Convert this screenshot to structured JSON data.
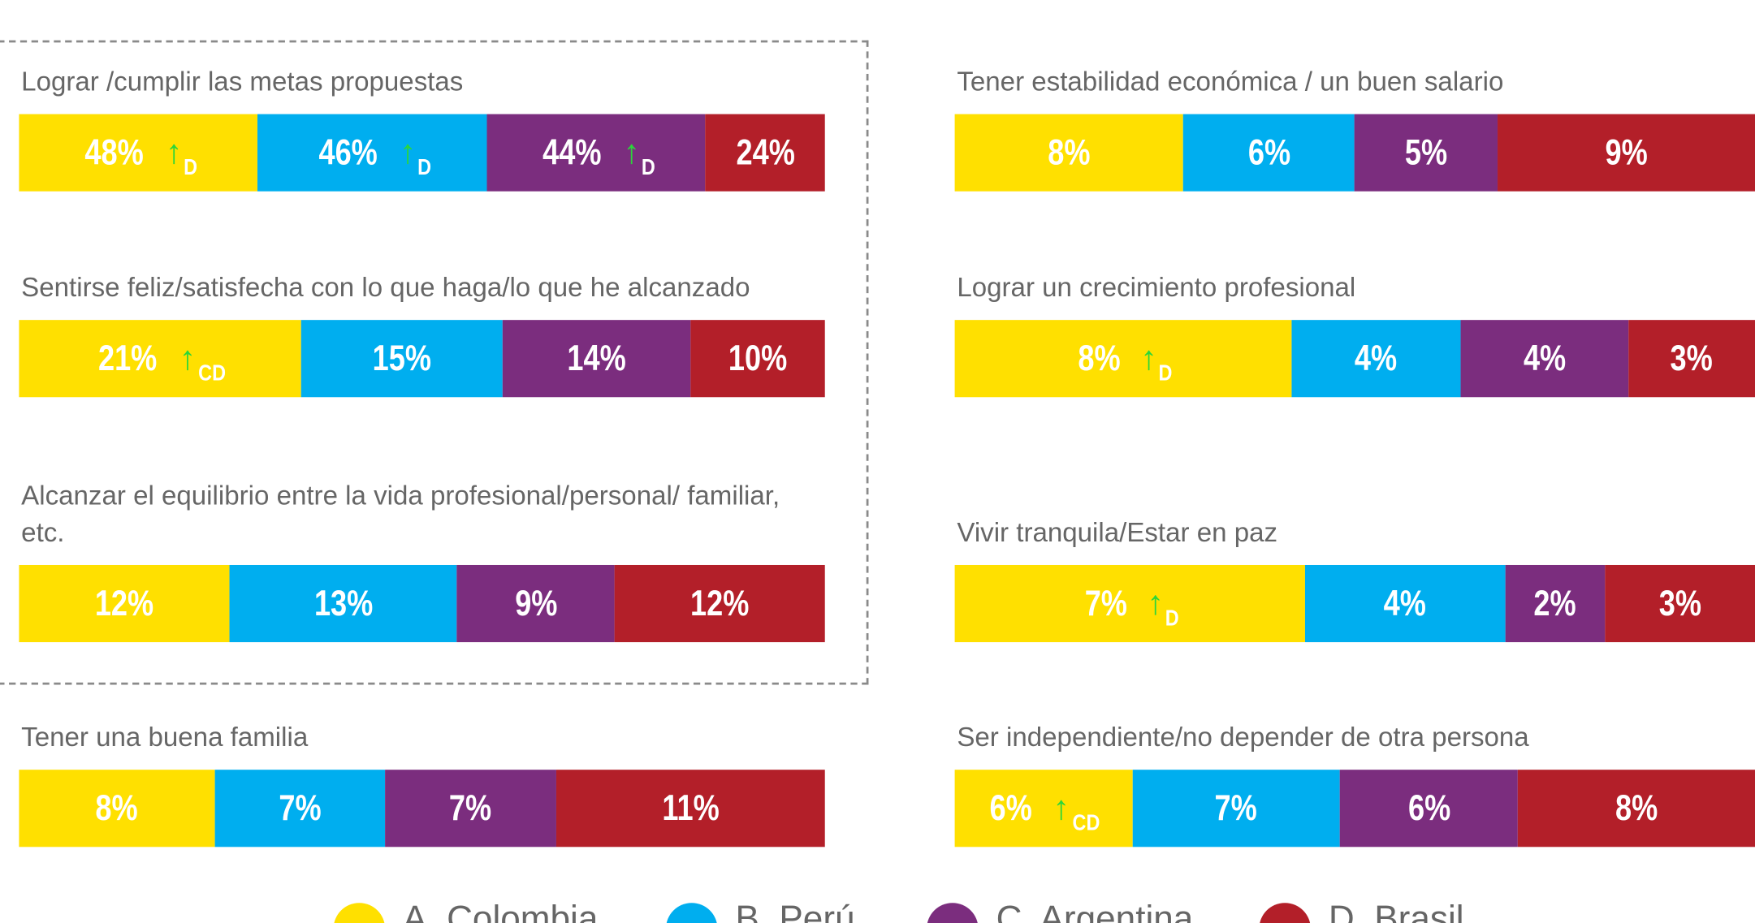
{
  "chart_data": {
    "type": "stacked_bar_100",
    "categories": [
      "Lograr /cumplir las metas propuestas",
      "Sentirse feliz/satisfecha con lo que haga/lo que he alcanzado",
      "Alcanzar el equilibrio entre la vida profesional/personal/ familiar, etc.",
      "Tener una buena familia",
      "Tener estabilidad económica / un buen salario",
      "Lograr un crecimiento profesional",
      "Vivir tranquila/Estar en paz",
      "Ser independiente/no depender de otra persona"
    ],
    "series": [
      {
        "name": "A. Colombia",
        "color": "#ffe000",
        "values": [
          48,
          21,
          12,
          8,
          8,
          8,
          7,
          6
        ],
        "value_labels": [
          "48%",
          "21%",
          "12%",
          "8%",
          "8%",
          "8%",
          "7%",
          "6%"
        ],
        "significance": [
          "D",
          "CD",
          null,
          null,
          null,
          "D",
          "D",
          "CD"
        ]
      },
      {
        "name": "B. Perú",
        "color": "#00aeef",
        "values": [
          46,
          15,
          13,
          7,
          6,
          4,
          4,
          7
        ],
        "value_labels": [
          "46%",
          "15%",
          "13%",
          "7%",
          "6%",
          "4%",
          "4%",
          "7%"
        ],
        "significance": [
          "D",
          null,
          null,
          null,
          null,
          null,
          null,
          null
        ]
      },
      {
        "name": "C. Argentina",
        "color": "#7b2d7e",
        "values": [
          44,
          14,
          9,
          7,
          5,
          4,
          2,
          6
        ],
        "value_labels": [
          "44%",
          "14%",
          "9%",
          "7%",
          "5%",
          "4%",
          "2%",
          "6%"
        ],
        "significance": [
          "D",
          null,
          null,
          null,
          null,
          null,
          null,
          null
        ]
      },
      {
        "name": "D. Brasil",
        "color": "#b31f29",
        "values": [
          24,
          10,
          12,
          11,
          9,
          3,
          3,
          8
        ],
        "value_labels": [
          "24%",
          "10%",
          "12%",
          "11%",
          "9%",
          "3%",
          "3%",
          "8%"
        ],
        "significance": [
          null,
          null,
          null,
          null,
          null,
          null,
          null,
          null
        ]
      }
    ]
  }
}
